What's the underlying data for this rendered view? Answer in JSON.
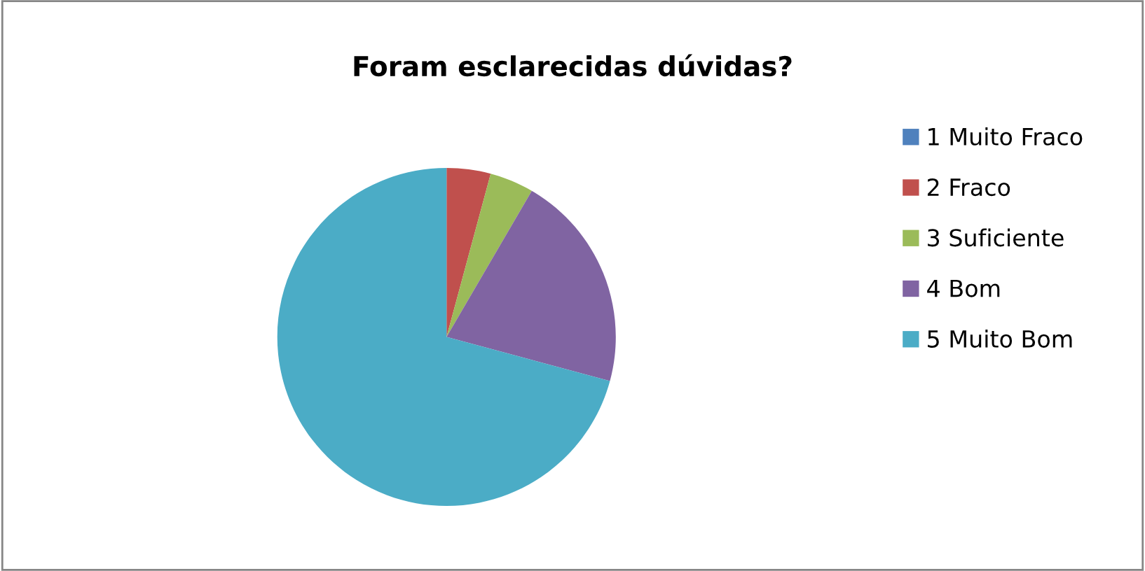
{
  "chart_data": {
    "type": "pie",
    "title": "Foram esclarecidas dúvidas?",
    "categories": [
      "1 Muito Fraco",
      "2 Fraco",
      "3 Suficiente",
      "4 Bom",
      "5 Muito Bom"
    ],
    "values": [
      0,
      4.2,
      4.2,
      20.8,
      70.8
    ],
    "colors": [
      "#4f81bd",
      "#c0504d",
      "#9bbb59",
      "#8064a2",
      "#4bacc6"
    ],
    "legend": "right"
  }
}
